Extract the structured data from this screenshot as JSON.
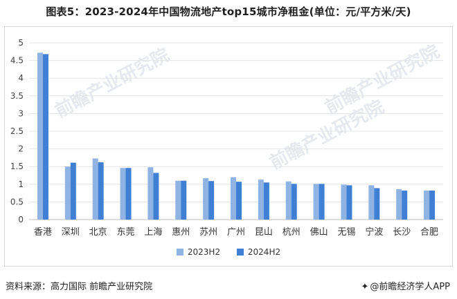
{
  "title": "图表5：2023-2024年中国物流地产top15城市净租金(单位：元/平方米/天)",
  "watermark": "前瞻产业研究院",
  "footer": {
    "source": "资料来源：高力国际 前瞻产业研究院",
    "brand_icon": "copyright-icon",
    "brand": "@前瞻经济学人APP"
  },
  "colors": {
    "series1": "#8fb4e3",
    "series2": "#3f7fd4",
    "grid": "#e4e4e4",
    "axis": "#bdbdbd"
  },
  "chart_data": {
    "type": "bar",
    "categories": [
      "香港",
      "深圳",
      "北京",
      "东莞",
      "上海",
      "惠州",
      "苏州",
      "广州",
      "昆山",
      "杭州",
      "佛山",
      "无锡",
      "宁波",
      "长沙",
      "合肥"
    ],
    "series": [
      {
        "name": "2023H2",
        "values": [
          4.72,
          1.5,
          1.73,
          1.46,
          1.48,
          1.1,
          1.17,
          1.2,
          1.13,
          1.08,
          1.01,
          0.99,
          0.97,
          0.86,
          0.82
        ]
      },
      {
        "name": "2024H2",
        "values": [
          4.68,
          1.61,
          1.62,
          1.46,
          1.32,
          1.1,
          1.09,
          1.07,
          1.05,
          1.01,
          1.01,
          0.97,
          0.89,
          0.82,
          0.82
        ]
      }
    ],
    "yticks": [
      "0",
      "0.5",
      "1",
      "1.5",
      "2",
      "2.5",
      "3",
      "3.5",
      "4",
      "4.5",
      "5"
    ],
    "ylim": [
      0,
      5
    ],
    "grid": true,
    "legend_position": "bottom"
  }
}
